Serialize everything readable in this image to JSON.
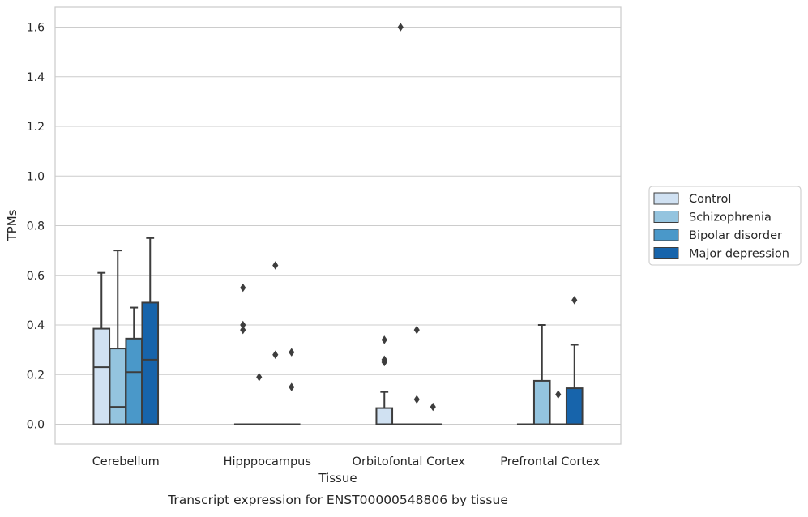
{
  "chart_data": {
    "type": "box",
    "caption": "Transcript expression for ENST00000548806 by tissue",
    "xlabel": "Tissue",
    "ylabel": "TPMs",
    "ylim": [
      -0.08,
      1.68
    ],
    "yticks": [
      0.0,
      0.2,
      0.4,
      0.6,
      0.8,
      1.0,
      1.2,
      1.4,
      1.6
    ],
    "ytick_labels": [
      "0.0",
      "0.2",
      "0.4",
      "0.6",
      "0.8",
      "1.0",
      "1.2",
      "1.4",
      "1.6"
    ],
    "grid": true,
    "legend_position": "right",
    "categories": [
      "Cerebellum",
      "Hipppocampus",
      "Orbitofontal Cortex",
      "Prefrontal Cortex"
    ],
    "series": [
      {
        "name": "Control",
        "color": "#d0e1f2",
        "boxes": [
          {
            "whislo": 0.0,
            "q1": 0.0,
            "med": 0.23,
            "q3": 0.385,
            "whishi": 0.61,
            "fliers": []
          },
          {
            "whislo": 0.0,
            "q1": 0.0,
            "med": 0.0,
            "q3": 0.0,
            "whishi": 0.0,
            "fliers": [
              0.55,
              0.4,
              0.38
            ]
          },
          {
            "whislo": 0.0,
            "q1": 0.0,
            "med": 0.0,
            "q3": 0.065,
            "whishi": 0.13,
            "fliers": [
              0.34,
              0.26,
              0.25
            ]
          },
          {
            "whislo": 0.0,
            "q1": 0.0,
            "med": 0.0,
            "q3": 0.0,
            "whishi": 0.0,
            "fliers": []
          }
        ]
      },
      {
        "name": "Schizophrenia",
        "color": "#94c4df",
        "boxes": [
          {
            "whislo": 0.0,
            "q1": 0.0,
            "med": 0.07,
            "q3": 0.305,
            "whishi": 0.7,
            "fliers": []
          },
          {
            "whislo": 0.0,
            "q1": 0.0,
            "med": 0.0,
            "q3": 0.0,
            "whishi": 0.0,
            "fliers": [
              0.19
            ]
          },
          {
            "whislo": 0.0,
            "q1": 0.0,
            "med": 0.0,
            "q3": 0.0,
            "whishi": 0.0,
            "fliers": [
              1.6
            ]
          },
          {
            "whislo": 0.0,
            "q1": 0.0,
            "med": 0.0,
            "q3": 0.175,
            "whishi": 0.4,
            "fliers": []
          }
        ]
      },
      {
        "name": "Bipolar disorder",
        "color": "#4a98c9",
        "boxes": [
          {
            "whislo": 0.0,
            "q1": 0.0,
            "med": 0.21,
            "q3": 0.345,
            "whishi": 0.47,
            "fliers": []
          },
          {
            "whislo": 0.0,
            "q1": 0.0,
            "med": 0.0,
            "q3": 0.0,
            "whishi": 0.0,
            "fliers": [
              0.64,
              0.28
            ]
          },
          {
            "whislo": 0.0,
            "q1": 0.0,
            "med": 0.0,
            "q3": 0.0,
            "whishi": 0.0,
            "fliers": [
              0.38,
              0.1
            ]
          },
          {
            "whislo": 0.0,
            "q1": 0.0,
            "med": 0.0,
            "q3": 0.0,
            "whishi": 0.0,
            "fliers": [
              0.12
            ]
          }
        ]
      },
      {
        "name": "Major depression",
        "color": "#1764ab",
        "boxes": [
          {
            "whislo": 0.0,
            "q1": 0.0,
            "med": 0.26,
            "q3": 0.49,
            "whishi": 0.75,
            "fliers": []
          },
          {
            "whislo": 0.0,
            "q1": 0.0,
            "med": 0.0,
            "q3": 0.0,
            "whishi": 0.0,
            "fliers": [
              0.29,
              0.15
            ]
          },
          {
            "whislo": 0.0,
            "q1": 0.0,
            "med": 0.0,
            "q3": 0.0,
            "whishi": 0.0,
            "fliers": [
              0.07
            ]
          },
          {
            "whislo": 0.0,
            "q1": 0.0,
            "med": 0.0,
            "q3": 0.145,
            "whishi": 0.32,
            "fliers": [
              0.5
            ]
          }
        ]
      }
    ]
  }
}
